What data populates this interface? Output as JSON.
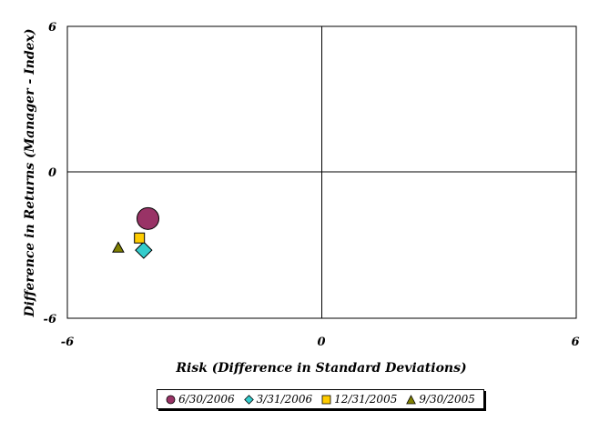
{
  "chart_data": {
    "type": "scatter",
    "title": "",
    "xlabel": "Risk (Difference in Standard Deviations)",
    "ylabel": "Difference in Returns (Manager - Index)",
    "xlim": [
      -6,
      6
    ],
    "ylim": [
      -6,
      6
    ],
    "x_ticks": [
      "-6",
      "0",
      "6"
    ],
    "y_ticks": [
      "6",
      "0",
      "-6"
    ],
    "grid": false,
    "legend_position": "bottom",
    "series": [
      {
        "name": "6/30/2006",
        "marker": "circle",
        "color": "#993366",
        "x": [
          -4.1
        ],
        "y": [
          -1.9
        ]
      },
      {
        "name": "3/31/2006",
        "marker": "diamond",
        "color": "#33CCCC",
        "x": [
          -4.2
        ],
        "y": [
          -3.2
        ]
      },
      {
        "name": "12/31/2005",
        "marker": "square",
        "color": "#FFCC00",
        "x": [
          -4.3
        ],
        "y": [
          -2.7
        ]
      },
      {
        "name": "9/30/2005",
        "marker": "triangle",
        "color": "#808000",
        "x": [
          -4.8
        ],
        "y": [
          -3.1
        ]
      }
    ]
  }
}
